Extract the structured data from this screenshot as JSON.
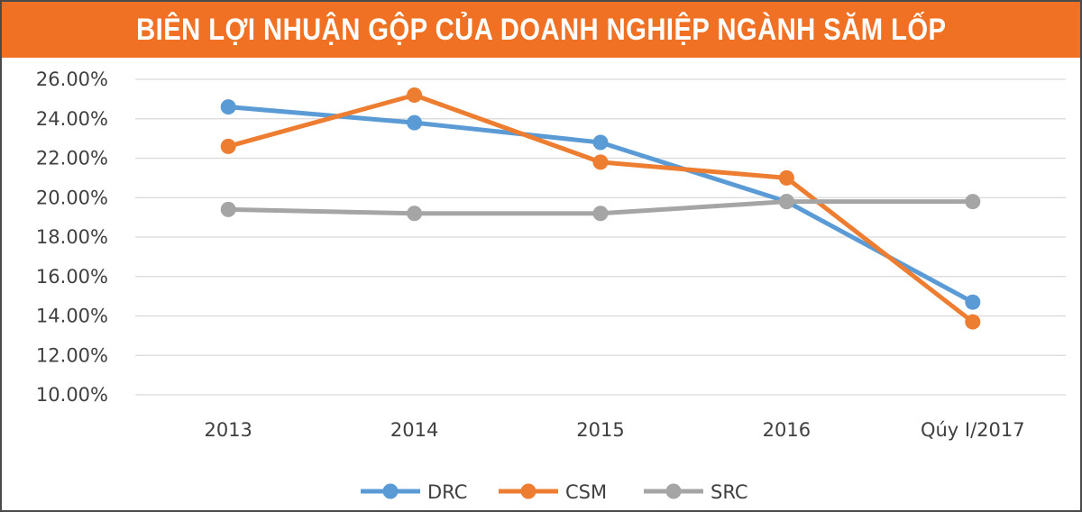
{
  "title": "BIÊN LỢI NHUẬN GỘP CỦA DOANH NGHIỆP NGÀNH SĂM LỐP",
  "colors": {
    "title_bg": "#f07124",
    "title_text": "#ffffff",
    "grid": "#d9d9d9",
    "axis_text": "#404040"
  },
  "chart_data": {
    "type": "line",
    "title": "BIÊN LỢI NHUẬN GỘP CỦA DOANH NGHIỆP NGÀNH SĂM LỐP",
    "xlabel": "",
    "ylabel": "",
    "categories": [
      "2013",
      "2014",
      "2015",
      "2016",
      "Qúy I/2017"
    ],
    "yticks": [
      "10.00%",
      "12.00%",
      "14.00%",
      "16.00%",
      "18.00%",
      "20.00%",
      "22.00%",
      "24.00%",
      "26.00%"
    ],
    "ylim": [
      10,
      26
    ],
    "grid": true,
    "legend_position": "bottom-center",
    "series": [
      {
        "name": "DRC",
        "color": "#5b9bd5",
        "values": [
          24.6,
          23.8,
          22.8,
          19.8,
          14.7
        ]
      },
      {
        "name": "CSM",
        "color": "#ed7d31",
        "values": [
          22.6,
          25.2,
          21.8,
          21.0,
          13.7
        ]
      },
      {
        "name": "SRC",
        "color": "#a5a5a5",
        "values": [
          19.4,
          19.2,
          19.2,
          19.8,
          19.8
        ]
      }
    ]
  }
}
